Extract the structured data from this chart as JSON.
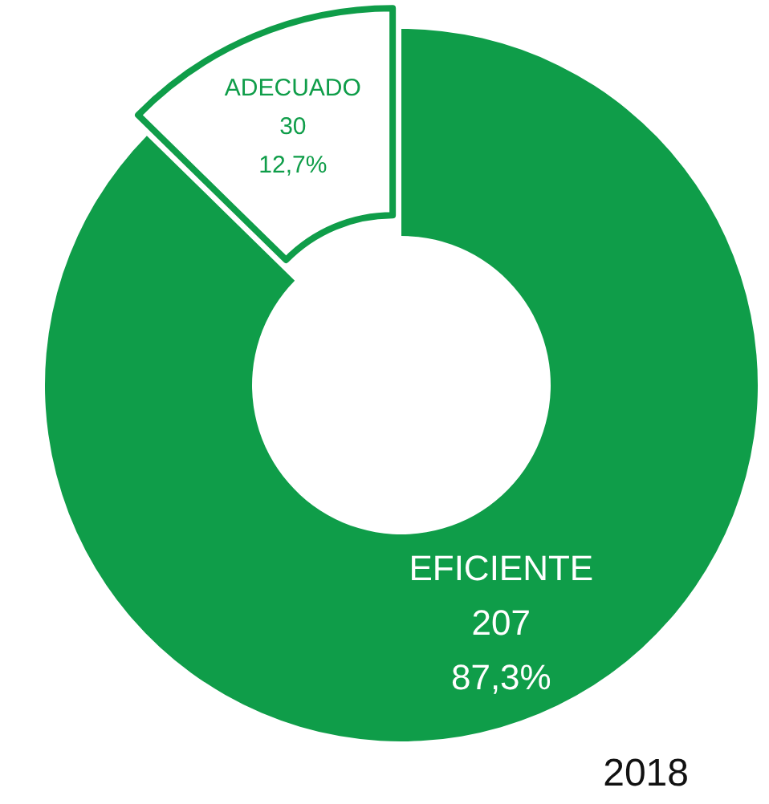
{
  "chart_data": {
    "type": "donut",
    "title": "2018",
    "categories": [
      "EFICIENTE",
      "ADECUADO"
    ],
    "values": [
      207,
      30
    ],
    "value_labels": [
      "207\n87,3%",
      "30\n12,7%"
    ],
    "colors": [
      "#0f9d49",
      "#ffffff"
    ],
    "legend": false
  }
}
